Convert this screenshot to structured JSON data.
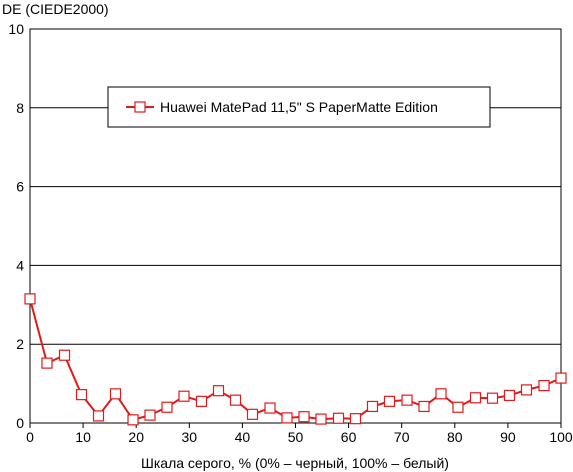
{
  "colors": {
    "series": "#e01b1b",
    "grid": "#000000",
    "background": "#ffffff"
  },
  "chart_data": {
    "type": "line",
    "ylabel": "DE (CIEDE2000)",
    "xlabel": "Шкала серого, % (0% – черный, 100% – белый)",
    "xlim": [
      0,
      100
    ],
    "ylim": [
      0,
      10
    ],
    "x_ticks": [
      "0",
      "10",
      "20",
      "30",
      "40",
      "50",
      "60",
      "70",
      "80",
      "90",
      "100"
    ],
    "y_ticks": [
      "0",
      "2",
      "4",
      "6",
      "8",
      "10"
    ],
    "grid": "horizontal",
    "legend_position": "upper-center",
    "series": [
      {
        "name": "Huawei MatePad 11,5\" S PaperMatte Edition",
        "marker": "square",
        "x": [
          0,
          3.2,
          6.5,
          9.7,
          12.9,
          16.1,
          19.4,
          22.6,
          25.8,
          29.0,
          32.3,
          35.5,
          38.7,
          41.9,
          45.2,
          48.4,
          51.6,
          54.8,
          58.1,
          61.3,
          64.5,
          67.7,
          71.0,
          74.2,
          77.4,
          80.6,
          83.9,
          87.1,
          90.3,
          93.5,
          96.8,
          100
        ],
        "y": [
          3.15,
          1.52,
          1.72,
          0.72,
          0.18,
          0.74,
          0.08,
          0.2,
          0.4,
          0.68,
          0.55,
          0.82,
          0.58,
          0.22,
          0.38,
          0.13,
          0.16,
          0.1,
          0.12,
          0.11,
          0.42,
          0.55,
          0.58,
          0.42,
          0.74,
          0.4,
          0.64,
          0.63,
          0.7,
          0.84,
          0.95,
          1.14
        ]
      }
    ]
  }
}
